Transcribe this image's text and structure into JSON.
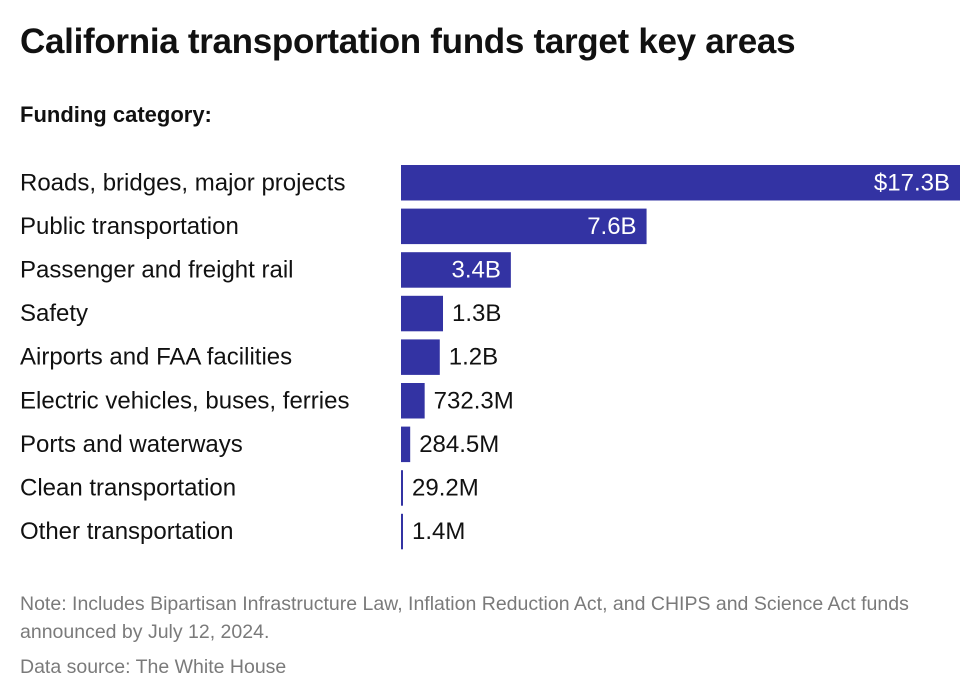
{
  "title": "California transportation funds target key areas",
  "subtitle": "Funding category:",
  "note": "Note: Includes Bipartisan Infrastructure Law, Inflation Reduction Act, and CHIPS and Science Act funds announced by July 12, 2024.",
  "source": "Data source: The White House",
  "colors": {
    "bar": "#3333a3",
    "label_inside": "#ffffff",
    "label_outside": "#111111"
  },
  "chart_data": {
    "type": "bar",
    "orientation": "horizontal",
    "categories": [
      "Roads, bridges, major projects",
      "Public transportation",
      "Passenger and freight rail",
      "Safety",
      "Airports and FAA facilities",
      "Electric vehicles, buses, ferries",
      "Ports and waterways",
      "Clean transportation",
      "Other transportation"
    ],
    "values": [
      17.3,
      7.6,
      3.4,
      1.3,
      1.2,
      0.7323,
      0.2845,
      0.0292,
      0.0014
    ],
    "value_unit": "billion USD",
    "data_labels": [
      "$17.3B",
      "7.6B",
      "3.4B",
      "1.3B",
      "1.2B",
      "732.3M",
      "284.5M",
      "29.2M",
      "1.4M"
    ],
    "xlim": [
      0,
      17.3
    ],
    "grid": false,
    "legend": "none"
  }
}
